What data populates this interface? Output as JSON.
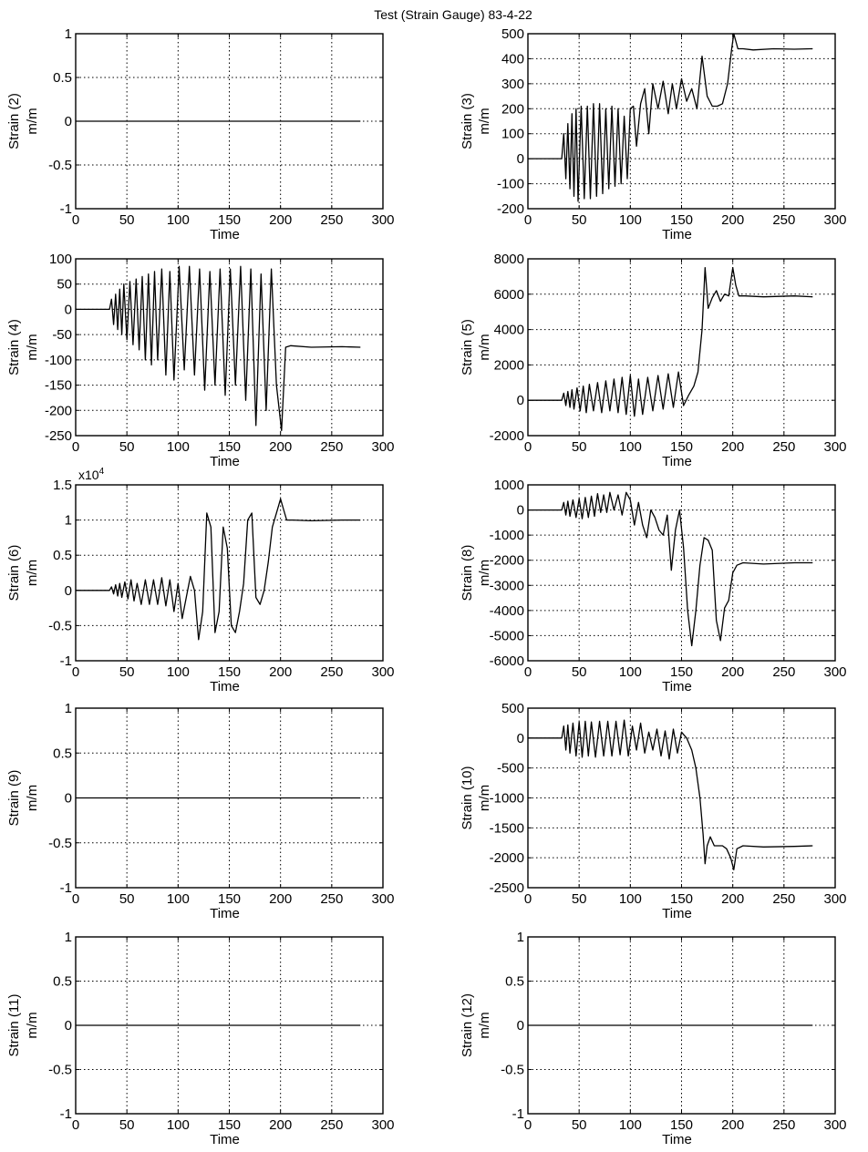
{
  "figure": {
    "title": "Test (Strain Gauge) 83-4-22"
  },
  "chart_data": [
    {
      "type": "line",
      "ylabel": [
        "Strain (2)",
        "m/m"
      ],
      "xlabel": "Time",
      "xlim": [
        0,
        300
      ],
      "ylim": [
        -1,
        1
      ],
      "x_ticks": [
        0,
        50,
        100,
        150,
        200,
        250,
        300
      ],
      "x_tick_labels": [
        "0",
        "50",
        "100",
        "150",
        "200",
        "250",
        "300"
      ],
      "y_ticks": [
        -1,
        -0.5,
        0,
        0.5,
        1
      ],
      "y_tick_labels": [
        "-1",
        "-0.5",
        "0",
        "0.5",
        "1"
      ],
      "grid": true,
      "series": [
        {
          "x": [
            0,
            278
          ],
          "y": [
            0,
            0
          ]
        }
      ]
    },
    {
      "type": "line",
      "ylabel": [
        "Strain (3)",
        "m/m"
      ],
      "xlabel": "Time",
      "xlim": [
        0,
        300
      ],
      "ylim": [
        -200,
        500
      ],
      "x_ticks": [
        0,
        50,
        100,
        150,
        200,
        250,
        300
      ],
      "x_tick_labels": [
        "0",
        "50",
        "100",
        "150",
        "200",
        "250",
        "300"
      ],
      "y_ticks": [
        -200,
        -100,
        0,
        100,
        200,
        300,
        400,
        500
      ],
      "y_tick_labels": [
        "-200",
        "-100",
        "0",
        "100",
        "200",
        "300",
        "400",
        "500"
      ],
      "grid": true,
      "series": [
        {
          "x": [
            0,
            33,
            35,
            37,
            39,
            41,
            43,
            45,
            47,
            49,
            52,
            55,
            58,
            61,
            64,
            67,
            70,
            73,
            76,
            79,
            82,
            85,
            88,
            91,
            94,
            97,
            100,
            103,
            106,
            110,
            114,
            118,
            122,
            127,
            132,
            137,
            141,
            145,
            150,
            155,
            160,
            165,
            170,
            175,
            180,
            185,
            190,
            195,
            199,
            201,
            205,
            210,
            220,
            240,
            260,
            278
          ],
          "y": [
            0,
            0,
            100,
            -80,
            140,
            -120,
            180,
            -150,
            200,
            -170,
            210,
            -160,
            210,
            -160,
            220,
            -150,
            220,
            -140,
            200,
            -120,
            210,
            -110,
            200,
            -100,
            170,
            -80,
            200,
            210,
            50,
            220,
            280,
            100,
            300,
            200,
            310,
            180,
            300,
            200,
            320,
            230,
            280,
            200,
            410,
            250,
            210,
            210,
            220,
            300,
            440,
            500,
            440,
            440,
            435,
            440,
            438,
            440
          ]
        }
      ]
    },
    {
      "type": "line",
      "ylabel": [
        "Strain (4)",
        "m/m"
      ],
      "xlabel": "Time",
      "xlim": [
        0,
        300
      ],
      "ylim": [
        -250,
        100
      ],
      "x_ticks": [
        0,
        50,
        100,
        150,
        200,
        250,
        300
      ],
      "x_tick_labels": [
        "0",
        "50",
        "100",
        "150",
        "200",
        "250",
        "300"
      ],
      "y_ticks": [
        -250,
        -200,
        -150,
        -100,
        -50,
        0,
        50,
        100
      ],
      "y_tick_labels": [
        "-250",
        "-200",
        "-150",
        "-100",
        "-50",
        "0",
        "50",
        "100"
      ],
      "grid": true,
      "series": [
        {
          "x": [
            0,
            33,
            35,
            37,
            39,
            41,
            43,
            45,
            47,
            50,
            53,
            56,
            59,
            62,
            65,
            68,
            71,
            74,
            77,
            80,
            84,
            88,
            92,
            96,
            101,
            106,
            111,
            116,
            121,
            126,
            131,
            136,
            141,
            146,
            151,
            156,
            161,
            166,
            171,
            176,
            181,
            186,
            191,
            196,
            201,
            205,
            210,
            230,
            260,
            278
          ],
          "y": [
            0,
            0,
            20,
            -30,
            30,
            -40,
            40,
            -50,
            50,
            -60,
            55,
            -70,
            60,
            -80,
            65,
            -100,
            70,
            -110,
            75,
            -100,
            80,
            -130,
            75,
            -140,
            85,
            -120,
            85,
            -130,
            80,
            -160,
            75,
            -150,
            80,
            -170,
            80,
            -150,
            85,
            -180,
            80,
            -230,
            70,
            -200,
            80,
            -150,
            -240,
            -75,
            -72,
            -75,
            -74,
            -75
          ]
        }
      ]
    },
    {
      "type": "line",
      "ylabel": [
        "Strain (5)",
        "m/m"
      ],
      "xlabel": "Time",
      "xlim": [
        0,
        300
      ],
      "ylim": [
        -2000,
        8000
      ],
      "x_ticks": [
        0,
        50,
        100,
        150,
        200,
        250,
        300
      ],
      "x_tick_labels": [
        "0",
        "50",
        "100",
        "150",
        "200",
        "250",
        "300"
      ],
      "y_ticks": [
        -2000,
        0,
        2000,
        4000,
        6000,
        8000
      ],
      "y_tick_labels": [
        "-2000",
        "0",
        "2000",
        "4000",
        "6000",
        "8000"
      ],
      "grid": true,
      "series": [
        {
          "x": [
            0,
            33,
            35,
            37,
            39,
            41,
            43,
            45,
            48,
            51,
            54,
            57,
            60,
            64,
            68,
            72,
            76,
            80,
            84,
            88,
            92,
            96,
            100,
            104,
            108,
            112,
            117,
            122,
            127,
            132,
            137,
            142,
            147,
            152,
            157,
            162,
            166,
            170,
            173,
            176,
            180,
            184,
            188,
            192,
            196,
            200,
            203,
            206,
            212,
            230,
            260,
            278
          ],
          "y": [
            0,
            0,
            400,
            -300,
            500,
            -400,
            600,
            -500,
            700,
            -600,
            800,
            -700,
            900,
            -600,
            1000,
            -700,
            1100,
            -600,
            1200,
            -700,
            1300,
            -800,
            1400,
            -900,
            1200,
            -800,
            1300,
            -600,
            1400,
            -500,
            1500,
            -400,
            1600,
            -300,
            300,
            800,
            1600,
            4000,
            7500,
            5200,
            5800,
            6200,
            5600,
            6000,
            5900,
            7500,
            6500,
            5900,
            5900,
            5850,
            5900,
            5850
          ]
        }
      ]
    },
    {
      "type": "line",
      "ylabel": [
        "Strain (6)",
        "m/m"
      ],
      "xlabel": "Time",
      "xlim": [
        0,
        300
      ],
      "ylim": [
        -1,
        1.5
      ],
      "y_scale_label": "x10",
      "y_scale_exp": "4",
      "x_ticks": [
        0,
        50,
        100,
        150,
        200,
        250,
        300
      ],
      "x_tick_labels": [
        "0",
        "50",
        "100",
        "150",
        "200",
        "250",
        "300"
      ],
      "y_ticks": [
        -1,
        -0.5,
        0,
        0.5,
        1,
        1.5
      ],
      "y_tick_labels": [
        "-1",
        "-0.5",
        "0",
        "0.5",
        "1",
        "1.5"
      ],
      "grid": true,
      "series": [
        {
          "x": [
            0,
            33,
            35,
            37,
            39,
            41,
            43,
            45,
            48,
            51,
            54,
            57,
            60,
            64,
            68,
            72,
            76,
            80,
            84,
            88,
            92,
            96,
            100,
            104,
            108,
            112,
            116,
            120,
            124,
            128,
            132,
            136,
            140,
            144,
            148,
            152,
            156,
            160,
            164,
            168,
            172,
            176,
            180,
            184,
            188,
            192,
            196,
            200,
            203,
            206,
            212,
            230,
            260,
            278
          ],
          "y": [
            0,
            0,
            0.05,
            -0.05,
            0.08,
            -0.08,
            0.1,
            -0.1,
            0.12,
            -0.12,
            0.15,
            -0.15,
            0.1,
            -0.2,
            0.15,
            -0.2,
            0.15,
            -0.2,
            0.18,
            -0.22,
            0.15,
            -0.3,
            0.1,
            -0.4,
            -0.1,
            0.2,
            0.0,
            -0.7,
            -0.3,
            1.1,
            0.9,
            -0.6,
            -0.3,
            0.9,
            0.6,
            -0.5,
            -0.6,
            -0.3,
            0.1,
            1.0,
            1.1,
            -0.1,
            -0.2,
            0.0,
            0.4,
            0.9,
            1.1,
            1.3,
            1.15,
            1.0,
            1.0,
            0.99,
            1.0,
            1.0
          ]
        }
      ]
    },
    {
      "type": "line",
      "ylabel": [
        "Strain (8)",
        "m/m"
      ],
      "xlabel": "Time",
      "xlim": [
        0,
        300
      ],
      "ylim": [
        -6000,
        1000
      ],
      "x_ticks": [
        0,
        50,
        100,
        150,
        200,
        250,
        300
      ],
      "x_tick_labels": [
        "0",
        "50",
        "100",
        "150",
        "200",
        "250",
        "300"
      ],
      "y_ticks": [
        -6000,
        -5000,
        -4000,
        -3000,
        -2000,
        -1000,
        0,
        1000
      ],
      "y_tick_labels": [
        "-6000",
        "-5000",
        "-4000",
        "-3000",
        "-2000",
        "-1000",
        "0",
        "1000"
      ],
      "grid": true,
      "series": [
        {
          "x": [
            0,
            33,
            35,
            37,
            39,
            41,
            44,
            47,
            50,
            53,
            56,
            59,
            62,
            65,
            68,
            71,
            74,
            77,
            80,
            84,
            88,
            92,
            96,
            100,
            104,
            108,
            112,
            116,
            120,
            124,
            128,
            132,
            136,
            140,
            144,
            148,
            152,
            156,
            160,
            164,
            168,
            172,
            176,
            180,
            184,
            188,
            192,
            196,
            200,
            204,
            210,
            230,
            260,
            278
          ],
          "y": [
            0,
            0,
            300,
            -200,
            350,
            -250,
            400,
            -300,
            450,
            -350,
            500,
            -300,
            550,
            -250,
            650,
            -100,
            600,
            -100,
            700,
            0,
            600,
            -200,
            700,
            400,
            -600,
            300,
            -600,
            -1100,
            0,
            -300,
            -800,
            -1000,
            -200,
            -2400,
            -800,
            0,
            -1500,
            -4000,
            -5400,
            -4000,
            -2200,
            -1100,
            -1200,
            -1600,
            -4400,
            -5200,
            -3900,
            -3600,
            -2500,
            -2200,
            -2100,
            -2150,
            -2100,
            -2100
          ]
        }
      ]
    },
    {
      "type": "line",
      "ylabel": [
        "Strain (9)",
        "m/m"
      ],
      "xlabel": "Time",
      "xlim": [
        0,
        300
      ],
      "ylim": [
        -1,
        1
      ],
      "x_ticks": [
        0,
        50,
        100,
        150,
        200,
        250,
        300
      ],
      "x_tick_labels": [
        "0",
        "50",
        "100",
        "150",
        "200",
        "250",
        "300"
      ],
      "y_ticks": [
        -1,
        -0.5,
        0,
        0.5,
        1
      ],
      "y_tick_labels": [
        "-1",
        "-0.5",
        "0",
        "0.5",
        "1"
      ],
      "grid": true,
      "series": [
        {
          "x": [
            0,
            278
          ],
          "y": [
            0,
            0
          ]
        }
      ]
    },
    {
      "type": "line",
      "ylabel": [
        "Strain (10)",
        "m/m"
      ],
      "xlabel": "Time",
      "xlim": [
        0,
        300
      ],
      "ylim": [
        -2500,
        500
      ],
      "x_ticks": [
        0,
        50,
        100,
        150,
        200,
        250,
        300
      ],
      "x_tick_labels": [
        "0",
        "50",
        "100",
        "150",
        "200",
        "250",
        "300"
      ],
      "y_ticks": [
        -2500,
        -2000,
        -1500,
        -1000,
        -500,
        0,
        500
      ],
      "y_tick_labels": [
        "-2500",
        "-2000",
        "-1500",
        "-1000",
        "-500",
        "0",
        "500"
      ],
      "grid": true,
      "series": [
        {
          "x": [
            0,
            33,
            35,
            37,
            39,
            41,
            44,
            47,
            50,
            53,
            56,
            59,
            62,
            66,
            70,
            74,
            78,
            82,
            86,
            90,
            94,
            98,
            102,
            106,
            110,
            114,
            118,
            122,
            126,
            130,
            134,
            138,
            142,
            146,
            150,
            155,
            160,
            164,
            168,
            171,
            173,
            175,
            178,
            182,
            186,
            190,
            194,
            198,
            201,
            204,
            210,
            230,
            260,
            278
          ],
          "y": [
            0,
            0,
            200,
            -200,
            220,
            -250,
            250,
            -300,
            270,
            -320,
            280,
            -300,
            270,
            -320,
            280,
            -300,
            280,
            -300,
            280,
            -280,
            300,
            -300,
            200,
            -200,
            250,
            -250,
            100,
            -200,
            150,
            -300,
            120,
            -350,
            150,
            -250,
            100,
            0,
            -200,
            -500,
            -1000,
            -1600,
            -2100,
            -1800,
            -1650,
            -1800,
            -1800,
            -1800,
            -1850,
            -2000,
            -2200,
            -1850,
            -1800,
            -1820,
            -1810,
            -1800
          ]
        }
      ]
    },
    {
      "type": "line",
      "ylabel": [
        "Strain (11)",
        "m/m"
      ],
      "xlabel": "Time",
      "xlim": [
        0,
        300
      ],
      "ylim": [
        -1,
        1
      ],
      "x_ticks": [
        0,
        50,
        100,
        150,
        200,
        250,
        300
      ],
      "x_tick_labels": [
        "0",
        "50",
        "100",
        "150",
        "200",
        "250",
        "300"
      ],
      "y_ticks": [
        -1,
        -0.5,
        0,
        0.5,
        1
      ],
      "y_tick_labels": [
        "-1",
        "-0.5",
        "0",
        "0.5",
        "1"
      ],
      "grid": true,
      "series": [
        {
          "x": [
            0,
            278
          ],
          "y": [
            0,
            0
          ]
        }
      ]
    },
    {
      "type": "line",
      "ylabel": [
        "Strain (12)",
        "m/m"
      ],
      "xlabel": "Time",
      "xlim": [
        0,
        300
      ],
      "ylim": [
        -1,
        1
      ],
      "x_ticks": [
        0,
        50,
        100,
        150,
        200,
        250,
        300
      ],
      "x_tick_labels": [
        "0",
        "50",
        "100",
        "150",
        "200",
        "250",
        "300"
      ],
      "y_ticks": [
        -1,
        -0.5,
        0,
        0.5,
        1
      ],
      "y_tick_labels": [
        "-1",
        "-0.5",
        "0",
        "0.5",
        "1"
      ],
      "grid": true,
      "series": [
        {
          "x": [
            0,
            278
          ],
          "y": [
            0,
            0
          ]
        }
      ]
    }
  ]
}
